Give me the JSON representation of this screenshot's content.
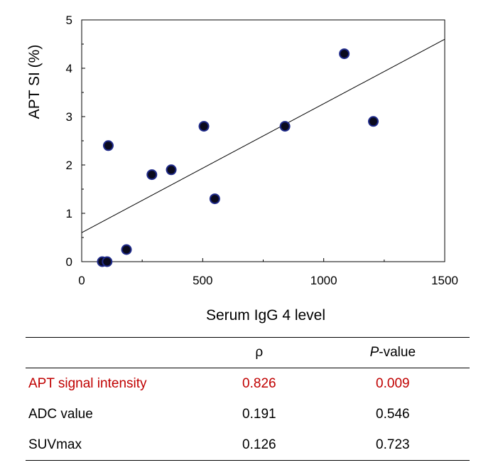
{
  "chart_data": {
    "type": "scatter",
    "xlabel": "Serum IgG 4 level",
    "ylabel": "APT SI (%)",
    "xlim": [
      0,
      1500
    ],
    "ylim": [
      0,
      5
    ],
    "x_ticks": [
      "0",
      "500",
      "1000",
      "1500"
    ],
    "y_ticks": [
      "0",
      "1",
      "2",
      "3",
      "4",
      "5"
    ],
    "points": [
      {
        "x": 85,
        "y": 0.0
      },
      {
        "x": 105,
        "y": 0.0
      },
      {
        "x": 110,
        "y": 2.4
      },
      {
        "x": 185,
        "y": 0.25
      },
      {
        "x": 290,
        "y": 1.8
      },
      {
        "x": 370,
        "y": 1.9
      },
      {
        "x": 505,
        "y": 2.8
      },
      {
        "x": 550,
        "y": 1.3
      },
      {
        "x": 840,
        "y": 2.8
      },
      {
        "x": 1085,
        "y": 4.3
      },
      {
        "x": 1205,
        "y": 2.9
      }
    ],
    "trendline": {
      "x": [
        0,
        1500
      ],
      "y": [
        0.6,
        4.6
      ]
    },
    "grid": false,
    "marker_color": "#0a0a1e",
    "marker_edge_color": "#1f2a8a"
  },
  "table": {
    "headers": {
      "label": "",
      "rho": "ρ",
      "p_italic": "P",
      "p_rest": "-value"
    },
    "rows": [
      {
        "label": "APT signal intensity",
        "rho": "0.826",
        "p": "0.009",
        "highlight": true
      },
      {
        "label": "ADC value",
        "rho": "0.191",
        "p": "0.546",
        "highlight": false
      },
      {
        "label": "SUVmax",
        "rho": "0.126",
        "p": "0.723",
        "highlight": false
      }
    ],
    "highlight_color": "#c00000"
  }
}
